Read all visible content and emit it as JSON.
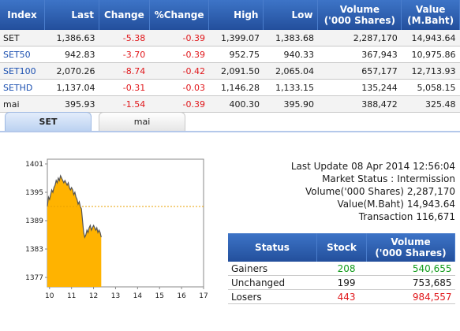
{
  "index_table": {
    "headers": [
      "Index",
      "Last",
      "Change",
      "%Change",
      "High",
      "Low",
      "Volume\n('000 Shares)",
      "Value\n(M.Baht)"
    ],
    "rows": [
      {
        "name": "SET",
        "last": "1,386.63",
        "change": "-5.38",
        "pct": "-0.39",
        "high": "1,399.07",
        "low": "1,383.68",
        "volume": "2,287,170",
        "value": "14,943.64"
      },
      {
        "name": "SET50",
        "last": "942.83",
        "change": "-3.70",
        "pct": "-0.39",
        "high": "952.75",
        "low": "940.33",
        "volume": "367,943",
        "value": "10,975.86"
      },
      {
        "name": "SET100",
        "last": "2,070.26",
        "change": "-8.74",
        "pct": "-0.42",
        "high": "2,091.50",
        "low": "2,065.04",
        "volume": "657,177",
        "value": "12,713.93"
      },
      {
        "name": "SETHD",
        "last": "1,137.04",
        "change": "-0.31",
        "pct": "-0.03",
        "high": "1,146.28",
        "low": "1,133.15",
        "volume": "135,244",
        "value": "5,058.15"
      },
      {
        "name": "mai",
        "last": "395.93",
        "change": "-1.54",
        "pct": "-0.39",
        "high": "400.30",
        "low": "395.90",
        "volume": "388,472",
        "value": "325.48"
      }
    ]
  },
  "tabs": [
    {
      "label": "SET",
      "active": true
    },
    {
      "label": "mai",
      "active": false
    }
  ],
  "colors": {
    "header_blue": "#2a5aab",
    "negative": "#e0161a",
    "positive": "#139c1c",
    "area_fill": "#ffb300",
    "reference_line": "#e8a000"
  },
  "chart_data": {
    "type": "area",
    "x_ticks": [
      10,
      11,
      12,
      13,
      14,
      15,
      16,
      17
    ],
    "y_ticks": [
      1401,
      1395,
      1389,
      1383,
      1377
    ],
    "xlim": [
      9.9,
      17
    ],
    "ylim": [
      1375,
      1402
    ],
    "reference_line": 1392.0,
    "x": [
      9.9,
      9.95,
      10.0,
      10.05,
      10.1,
      10.15,
      10.2,
      10.25,
      10.3,
      10.35,
      10.4,
      10.45,
      10.5,
      10.55,
      10.6,
      10.65,
      10.7,
      10.75,
      10.8,
      10.85,
      10.9,
      10.95,
      11.0,
      11.05,
      11.1,
      11.15,
      11.2,
      11.25,
      11.3,
      11.35,
      11.4,
      11.45,
      11.5,
      11.55,
      11.6,
      11.65,
      11.7,
      11.75,
      11.8,
      11.85,
      11.9,
      11.95,
      12.0,
      12.05,
      12.1,
      12.15,
      12.2,
      12.25,
      12.3,
      12.35
    ],
    "y": [
      1392.0,
      1394.0,
      1393.5,
      1394.5,
      1395.5,
      1395.0,
      1396.0,
      1396.5,
      1397.5,
      1397.0,
      1398.0,
      1397.5,
      1398.5,
      1398.0,
      1397.5,
      1397.0,
      1397.5,
      1397.0,
      1396.5,
      1397.0,
      1396.0,
      1395.5,
      1396.0,
      1395.5,
      1394.5,
      1395.0,
      1394.0,
      1393.5,
      1392.5,
      1393.0,
      1392.0,
      1391.5,
      1389.0,
      1386.5,
      1385.5,
      1386.0,
      1387.0,
      1386.5,
      1387.5,
      1388.0,
      1387.0,
      1387.5,
      1388.0,
      1387.5,
      1387.0,
      1387.5,
      1386.5,
      1387.0,
      1386.5,
      1385.5
    ]
  },
  "market_info": {
    "last_update_label": "Last Update",
    "last_update_value": "08 Apr 2014 12:56:04",
    "market_status_label": "Market Status :",
    "market_status_value": "Intermission",
    "volume_label": "Volume('000 Shares)",
    "volume_value": "2,287,170",
    "value_label": "Value(M.Baht)",
    "value_value": "14,943.64",
    "transaction_label": "Transaction",
    "transaction_value": "116,671"
  },
  "status_table": {
    "headers": [
      "Status",
      "Stock",
      "Volume\n('000 Shares)"
    ],
    "rows": [
      {
        "status": "Gainers",
        "stock": "208",
        "volume": "540,655",
        "tone": "pos"
      },
      {
        "status": "Unchanged",
        "stock": "199",
        "volume": "753,685",
        "tone": ""
      },
      {
        "status": "Losers",
        "stock": "443",
        "volume": "984,557",
        "tone": "neg"
      }
    ]
  }
}
